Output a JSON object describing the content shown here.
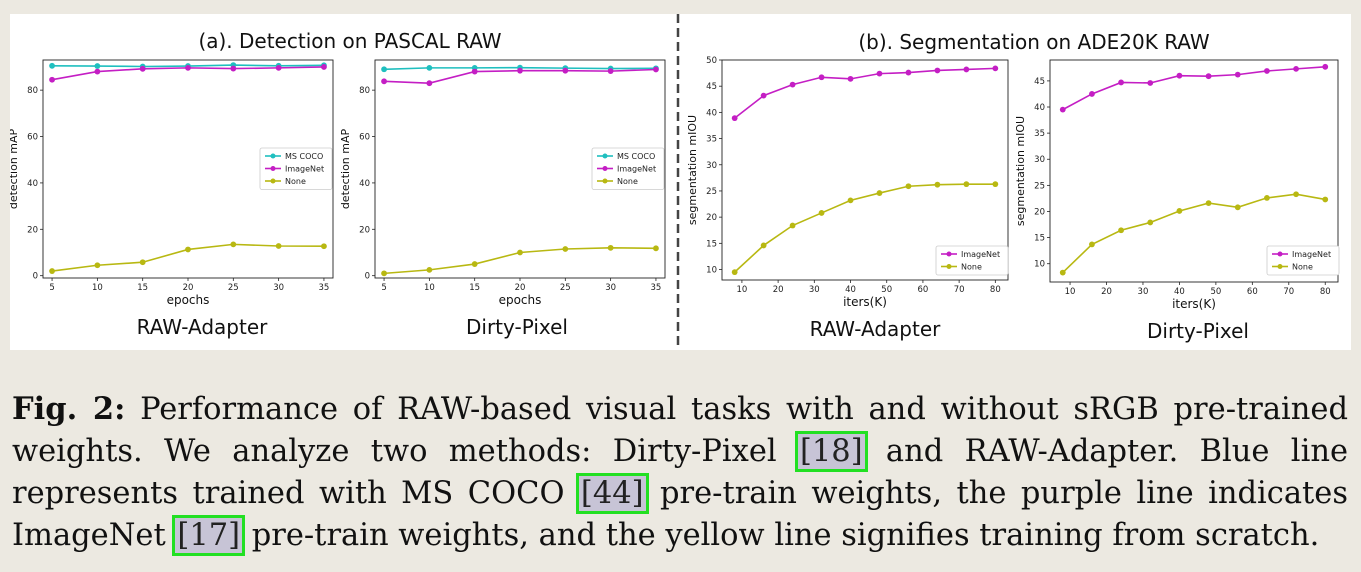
{
  "panels": {
    "left_title": "(a). Detection on PASCAL RAW",
    "right_title": "(b). Segmentation on ADE20K RAW"
  },
  "colors": {
    "ms_coco": "#1fbfbf",
    "imagenet": "#c41ec4",
    "none": "#b8b812"
  },
  "chart_data": [
    {
      "type": "line",
      "subtitle": "RAW-Adapter",
      "xlabel": "epochs",
      "ylabel": "detection mAP",
      "x": [
        5,
        10,
        15,
        20,
        25,
        30,
        35
      ],
      "xticks": [
        5,
        10,
        15,
        20,
        25,
        30,
        35
      ],
      "yticks": [
        0,
        20,
        40,
        60,
        80
      ],
      "xlim": [
        4,
        36
      ],
      "ylim": [
        -1,
        93
      ],
      "legend": "center-right",
      "series": [
        {
          "name": "MS COCO",
          "color": "#1fbfbf",
          "values": [
            90.5,
            90.4,
            90.2,
            90.4,
            90.8,
            90.5,
            90.7
          ]
        },
        {
          "name": "ImageNet",
          "color": "#c41ec4",
          "values": [
            84.5,
            88.0,
            89.2,
            89.6,
            89.3,
            89.6,
            90.0
          ]
        },
        {
          "name": "None",
          "color": "#b8b812",
          "values": [
            2.0,
            4.5,
            5.8,
            11.3,
            13.5,
            12.8,
            12.7
          ]
        }
      ]
    },
    {
      "type": "line",
      "subtitle": "Dirty-Pixel",
      "xlabel": "epochs",
      "ylabel": "detection mAP",
      "x": [
        5,
        10,
        15,
        20,
        25,
        30,
        35
      ],
      "xticks": [
        5,
        10,
        15,
        20,
        25,
        30,
        35
      ],
      "yticks": [
        0,
        20,
        40,
        60,
        80
      ],
      "xlim": [
        4,
        36
      ],
      "ylim": [
        -1,
        93
      ],
      "legend": "center-right",
      "series": [
        {
          "name": "MS COCO",
          "color": "#1fbfbf",
          "values": [
            89.0,
            89.6,
            89.6,
            89.7,
            89.5,
            89.3,
            89.4
          ]
        },
        {
          "name": "ImageNet",
          "color": "#c41ec4",
          "values": [
            83.8,
            83.0,
            88.0,
            88.4,
            88.4,
            88.2,
            88.9
          ]
        },
        {
          "name": "None",
          "color": "#b8b812",
          "values": [
            1.0,
            2.5,
            5.0,
            10.0,
            11.5,
            12.0,
            11.8
          ]
        }
      ]
    },
    {
      "type": "line",
      "subtitle": "RAW-Adapter",
      "xlabel": "iters(K)",
      "ylabel": "segmentation mIOU",
      "x": [
        8,
        16,
        24,
        32,
        40,
        48,
        56,
        64,
        72,
        80
      ],
      "xticks": [
        10,
        20,
        30,
        40,
        50,
        60,
        70,
        80
      ],
      "yticks": [
        10,
        15,
        20,
        25,
        30,
        35,
        40,
        45,
        50
      ],
      "xlim": [
        4.5,
        83.5
      ],
      "ylim": [
        8,
        50
      ],
      "legend": "lower-right",
      "series": [
        {
          "name": "ImageNet",
          "color": "#c41ec4",
          "values": [
            38.9,
            43.2,
            45.3,
            46.7,
            46.4,
            47.4,
            47.6,
            48.0,
            48.2,
            48.4
          ]
        },
        {
          "name": "None",
          "color": "#b8b812",
          "values": [
            9.5,
            14.6,
            18.4,
            20.8,
            23.2,
            24.6,
            25.9,
            26.2,
            26.3,
            26.3
          ]
        }
      ]
    },
    {
      "type": "line",
      "subtitle": "Dirty-Pixel",
      "xlabel": "iters(K)",
      "ylabel": "segmentation mIOU",
      "x": [
        8,
        16,
        24,
        32,
        40,
        48,
        56,
        64,
        72,
        80
      ],
      "xticks": [
        10,
        20,
        30,
        40,
        50,
        60,
        70,
        80
      ],
      "yticks": [
        10,
        15,
        20,
        25,
        30,
        35,
        40,
        45
      ],
      "xlim": [
        4.5,
        83.5
      ],
      "ylim": [
        6.5,
        49
      ],
      "legend": "lower-right",
      "series": [
        {
          "name": "ImageNet",
          "color": "#c41ec4",
          "values": [
            39.5,
            42.5,
            44.7,
            44.6,
            46.0,
            45.9,
            46.2,
            46.9,
            47.3,
            47.7
          ]
        },
        {
          "name": "None",
          "color": "#b8b812",
          "values": [
            8.3,
            13.7,
            16.4,
            17.9,
            20.1,
            21.6,
            20.8,
            22.6,
            23.3,
            22.3
          ]
        }
      ]
    }
  ],
  "caption": {
    "label": "Fig. 2:",
    "t1": " Performance of RAW-based visual tasks with and without sRGB pre-trained weights. We analyze two methods: Dirty-Pixel ",
    "ref1": "[18]",
    "t2": " and RAW-Adapter. Blue line represents trained with MS COCO ",
    "ref2": "[44]",
    "t3": " pre-train weights, the purple line indicates ImageNet ",
    "ref3": "[17]",
    "t4": " pre-train weights, and the yellow line signifies training from scratch."
  }
}
